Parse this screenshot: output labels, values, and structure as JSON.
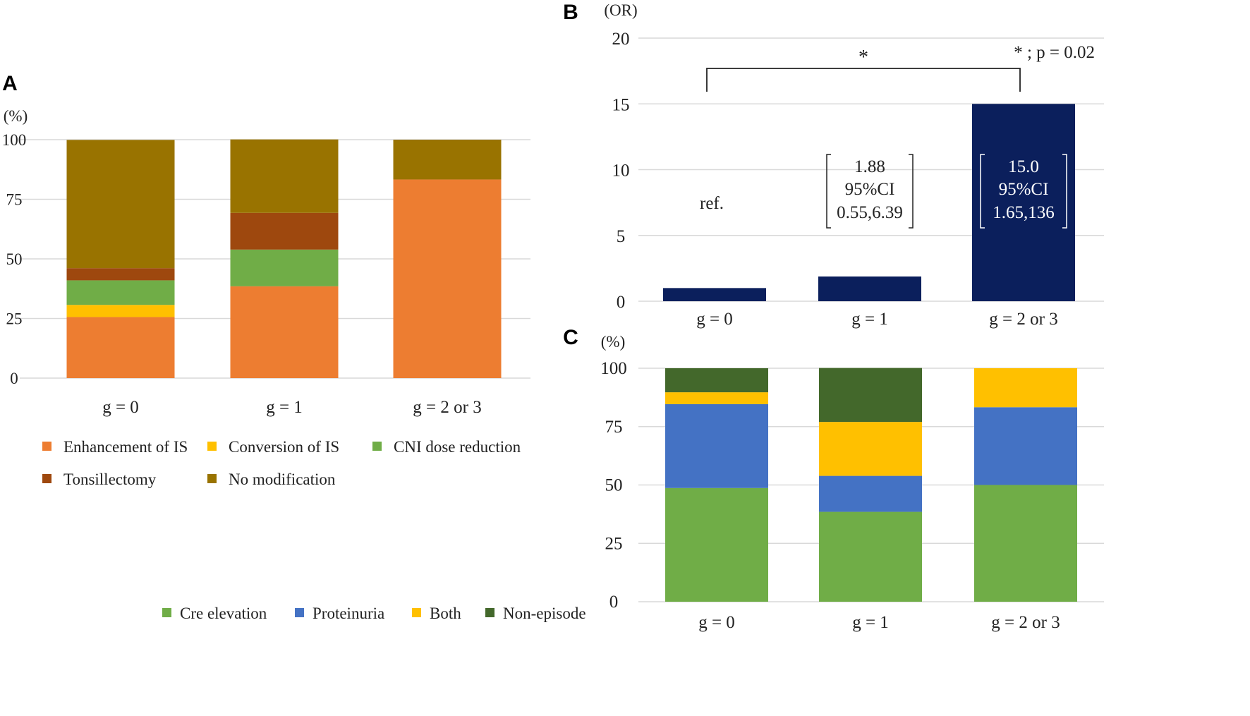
{
  "chart_data": [
    {
      "panel": "A",
      "type": "bar",
      "stacked": true,
      "unit": "(%)",
      "categories": [
        "g = 0",
        "g = 1",
        "g = 2 or 3"
      ],
      "ylim": [
        0,
        100
      ],
      "yticks": [
        "0",
        "25",
        "50",
        "75",
        "100"
      ],
      "grid": true,
      "legend_position": "bottom",
      "series": [
        {
          "name": "Enhancement  of IS",
          "color": "#ED7D31",
          "values": [
            25.6,
            38.5,
            83.3
          ]
        },
        {
          "name": "Conversion of IS",
          "color": "#FFC000",
          "values": [
            5.1,
            0,
            0
          ]
        },
        {
          "name": "CNI dose reduction",
          "color": "#70AD47",
          "values": [
            10.3,
            15.4,
            0
          ]
        },
        {
          "name": "Tonsillectomy",
          "color": "#9E480E",
          "values": [
            5.1,
            15.4,
            0
          ]
        },
        {
          "name": "No modification",
          "color": "#997300",
          "values": [
            53.8,
            30.8,
            16.7
          ]
        }
      ]
    },
    {
      "panel": "B",
      "type": "bar",
      "unit": "(OR)",
      "categories": [
        "g = 0",
        "g = 1",
        "g = 2 or 3"
      ],
      "values": [
        1.0,
        1.88,
        15.0
      ],
      "color": "#0B1F5C",
      "ylim": [
        0,
        20
      ],
      "yticks": [
        "0",
        "5",
        "10",
        "15",
        "20"
      ],
      "grid": true,
      "annotations": [
        {
          "category": "g = 0",
          "lines": [
            "ref."
          ]
        },
        {
          "category": "g = 1",
          "lines": [
            "1.88",
            "95%CI",
            "0.55,6.39"
          ]
        },
        {
          "category": "g = 2 or 3",
          "lines": [
            "15.0",
            "95%CI",
            "1.65,136"
          ]
        }
      ],
      "significance": {
        "from": "g = 0",
        "to": "g = 2 or 3",
        "mark": "*",
        "note": "* ; p = 0.02"
      }
    },
    {
      "panel": "C",
      "type": "bar",
      "stacked": true,
      "unit": "(%)",
      "categories": [
        "g = 0",
        "g = 1",
        "g = 2 or 3"
      ],
      "ylim": [
        0,
        100
      ],
      "yticks": [
        "0",
        "25",
        "50",
        "75",
        "100"
      ],
      "grid": true,
      "legend_position": "bottom-left",
      "series": [
        {
          "name": "Cre elevation",
          "color": "#70AD47",
          "values": [
            48.7,
            38.5,
            50.0
          ]
        },
        {
          "name": "Proteinuria",
          "color": "#4472C4",
          "values": [
            35.9,
            15.4,
            33.3
          ]
        },
        {
          "name": "Both",
          "color": "#FFC000",
          "values": [
            5.1,
            23.1,
            16.7
          ]
        },
        {
          "name": "Non-episode",
          "color": "#43682B",
          "values": [
            10.3,
            23.1,
            0
          ]
        }
      ]
    }
  ]
}
